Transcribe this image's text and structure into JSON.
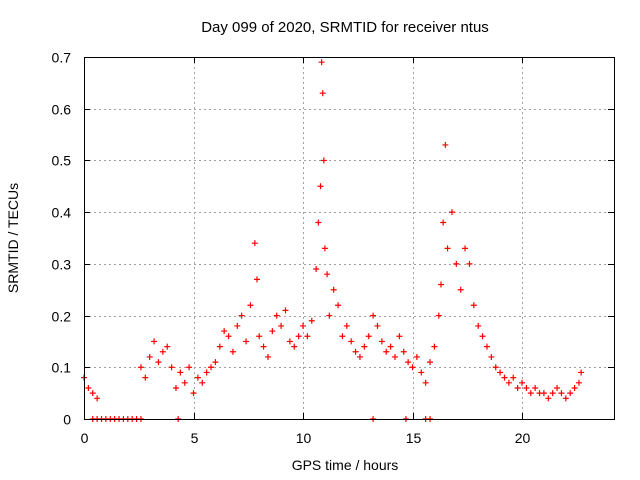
{
  "chart_data": {
    "type": "scatter",
    "title": "Day 099 of 2020, SRMTID for receiver ntus",
    "xlabel": "GPS time / hours",
    "ylabel": "SRMTID / TECUs",
    "xlim": [
      0,
      24.2
    ],
    "ylim": [
      0,
      0.7
    ],
    "xticks": [
      0,
      5,
      10,
      15,
      20
    ],
    "xtick_labels": [
      "0",
      "5",
      "10",
      "15",
      "20"
    ],
    "yticks": [
      0,
      0.1,
      0.2,
      0.3,
      0.4,
      0.5,
      0.6,
      0.7
    ],
    "ytick_labels": [
      "0",
      "0.1",
      "0.2",
      "0.3",
      "0.4",
      "0.5",
      "0.6",
      "0.7"
    ],
    "grid": true,
    "marker": "+",
    "color": "#ff0000",
    "series": [
      {
        "name": "SRMTID",
        "x": [
          0.0,
          0.2,
          0.4,
          0.6,
          2.6,
          2.8,
          3.0,
          3.2,
          3.4,
          3.6,
          3.8,
          4.0,
          4.2,
          4.4,
          4.6,
          4.8,
          5.0,
          5.2,
          5.4,
          5.6,
          5.8,
          6.0,
          6.2,
          6.4,
          6.6,
          6.8,
          7.0,
          7.2,
          7.4,
          7.6,
          7.8,
          7.9,
          8.0,
          8.2,
          8.4,
          8.6,
          8.8,
          9.0,
          9.2,
          9.4,
          9.6,
          9.8,
          10.0,
          10.2,
          10.4,
          10.6,
          10.7,
          10.8,
          10.85,
          10.9,
          10.95,
          11.0,
          11.1,
          11.2,
          11.4,
          11.6,
          11.8,
          12.0,
          12.2,
          12.4,
          12.6,
          12.8,
          13.0,
          13.2,
          13.4,
          13.6,
          13.8,
          14.0,
          14.2,
          14.4,
          14.6,
          14.8,
          15.0,
          15.2,
          15.4,
          15.6,
          15.8,
          16.0,
          16.2,
          16.3,
          16.4,
          16.5,
          16.6,
          16.8,
          17.0,
          17.2,
          17.4,
          17.6,
          17.8,
          18.0,
          18.2,
          18.4,
          18.6,
          18.8,
          19.0,
          19.2,
          19.4,
          19.6,
          19.8,
          20.0,
          20.2,
          20.4,
          20.6,
          20.8,
          21.0,
          21.2,
          21.4,
          21.6,
          21.8,
          22.0,
          22.2,
          22.4,
          22.6,
          22.7,
          0.4,
          0.6,
          0.8,
          1.0,
          1.2,
          1.4,
          1.6,
          1.8,
          2.0,
          2.2,
          2.4,
          2.6,
          4.3,
          13.2,
          14.7,
          15.6,
          15.8
        ],
        "y": [
          0.08,
          0.06,
          0.05,
          0.04,
          0.1,
          0.08,
          0.12,
          0.15,
          0.11,
          0.13,
          0.14,
          0.1,
          0.06,
          0.09,
          0.07,
          0.1,
          0.05,
          0.08,
          0.07,
          0.09,
          0.1,
          0.11,
          0.14,
          0.17,
          0.16,
          0.13,
          0.18,
          0.2,
          0.15,
          0.22,
          0.34,
          0.27,
          0.16,
          0.14,
          0.12,
          0.17,
          0.2,
          0.18,
          0.21,
          0.15,
          0.14,
          0.16,
          0.18,
          0.16,
          0.19,
          0.29,
          0.38,
          0.45,
          0.69,
          0.63,
          0.5,
          0.33,
          0.28,
          0.2,
          0.25,
          0.22,
          0.16,
          0.18,
          0.15,
          0.13,
          0.12,
          0.14,
          0.16,
          0.2,
          0.18,
          0.15,
          0.13,
          0.14,
          0.12,
          0.16,
          0.13,
          0.11,
          0.1,
          0.12,
          0.09,
          0.07,
          0.11,
          0.14,
          0.2,
          0.26,
          0.38,
          0.53,
          0.33,
          0.4,
          0.3,
          0.25,
          0.33,
          0.3,
          0.22,
          0.18,
          0.16,
          0.14,
          0.12,
          0.1,
          0.09,
          0.08,
          0.07,
          0.08,
          0.06,
          0.07,
          0.06,
          0.05,
          0.06,
          0.05,
          0.05,
          0.04,
          0.05,
          0.06,
          0.05,
          0.04,
          0.05,
          0.06,
          0.07,
          0.09,
          0.0,
          0.0,
          0.0,
          0.0,
          0.0,
          0.0,
          0.0,
          0.0,
          0.0,
          0.0,
          0.0,
          0.0,
          0.0,
          0.0,
          0.0,
          0.0,
          0.0
        ]
      }
    ]
  }
}
